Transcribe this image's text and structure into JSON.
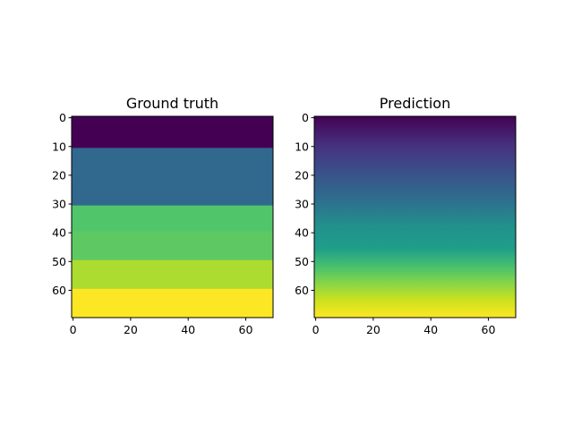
{
  "chart_data": [
    {
      "type": "heatmap",
      "title": "Ground truth",
      "xlabel": "",
      "ylabel": "",
      "rows": 70,
      "cols": 70,
      "xlim": [
        0,
        70
      ],
      "ylim": [
        70,
        0
      ],
      "xticks": [
        0,
        20,
        40,
        60
      ],
      "yticks": [
        0,
        10,
        20,
        30,
        40,
        50,
        60
      ],
      "colormap": "viridis",
      "bands": [
        {
          "start": 0,
          "end": 11,
          "color": "#440154"
        },
        {
          "start": 11,
          "end": 31,
          "color": "#31688e"
        },
        {
          "start": 31,
          "end": 40,
          "color": "#51c56a"
        },
        {
          "start": 40,
          "end": 50,
          "color": "#5ec962"
        },
        {
          "start": 50,
          "end": 60,
          "color": "#addc30"
        },
        {
          "start": 60,
          "end": 70,
          "color": "#fde725"
        }
      ],
      "grid": false,
      "legend": "none"
    },
    {
      "type": "heatmap",
      "title": "Prediction",
      "xlabel": "",
      "ylabel": "",
      "rows": 70,
      "cols": 70,
      "xlim": [
        0,
        70
      ],
      "ylim": [
        70,
        0
      ],
      "xticks": [
        0,
        20,
        40,
        60
      ],
      "yticks": [
        0,
        10,
        20,
        30,
        40,
        50,
        60
      ],
      "colormap": "viridis",
      "row_profile": [
        {
          "row": 0,
          "color": "#440154"
        },
        {
          "row": 10,
          "color": "#46317e"
        },
        {
          "row": 20,
          "color": "#3a528b"
        },
        {
          "row": 30,
          "color": "#2c728e"
        },
        {
          "row": 38,
          "color": "#22908c"
        },
        {
          "row": 46,
          "color": "#1f9e89"
        },
        {
          "row": 52,
          "color": "#45bf70"
        },
        {
          "row": 58,
          "color": "#86d549"
        },
        {
          "row": 64,
          "color": "#cde11d"
        },
        {
          "row": 70,
          "color": "#fde725"
        }
      ],
      "grid": false,
      "legend": "none"
    }
  ]
}
